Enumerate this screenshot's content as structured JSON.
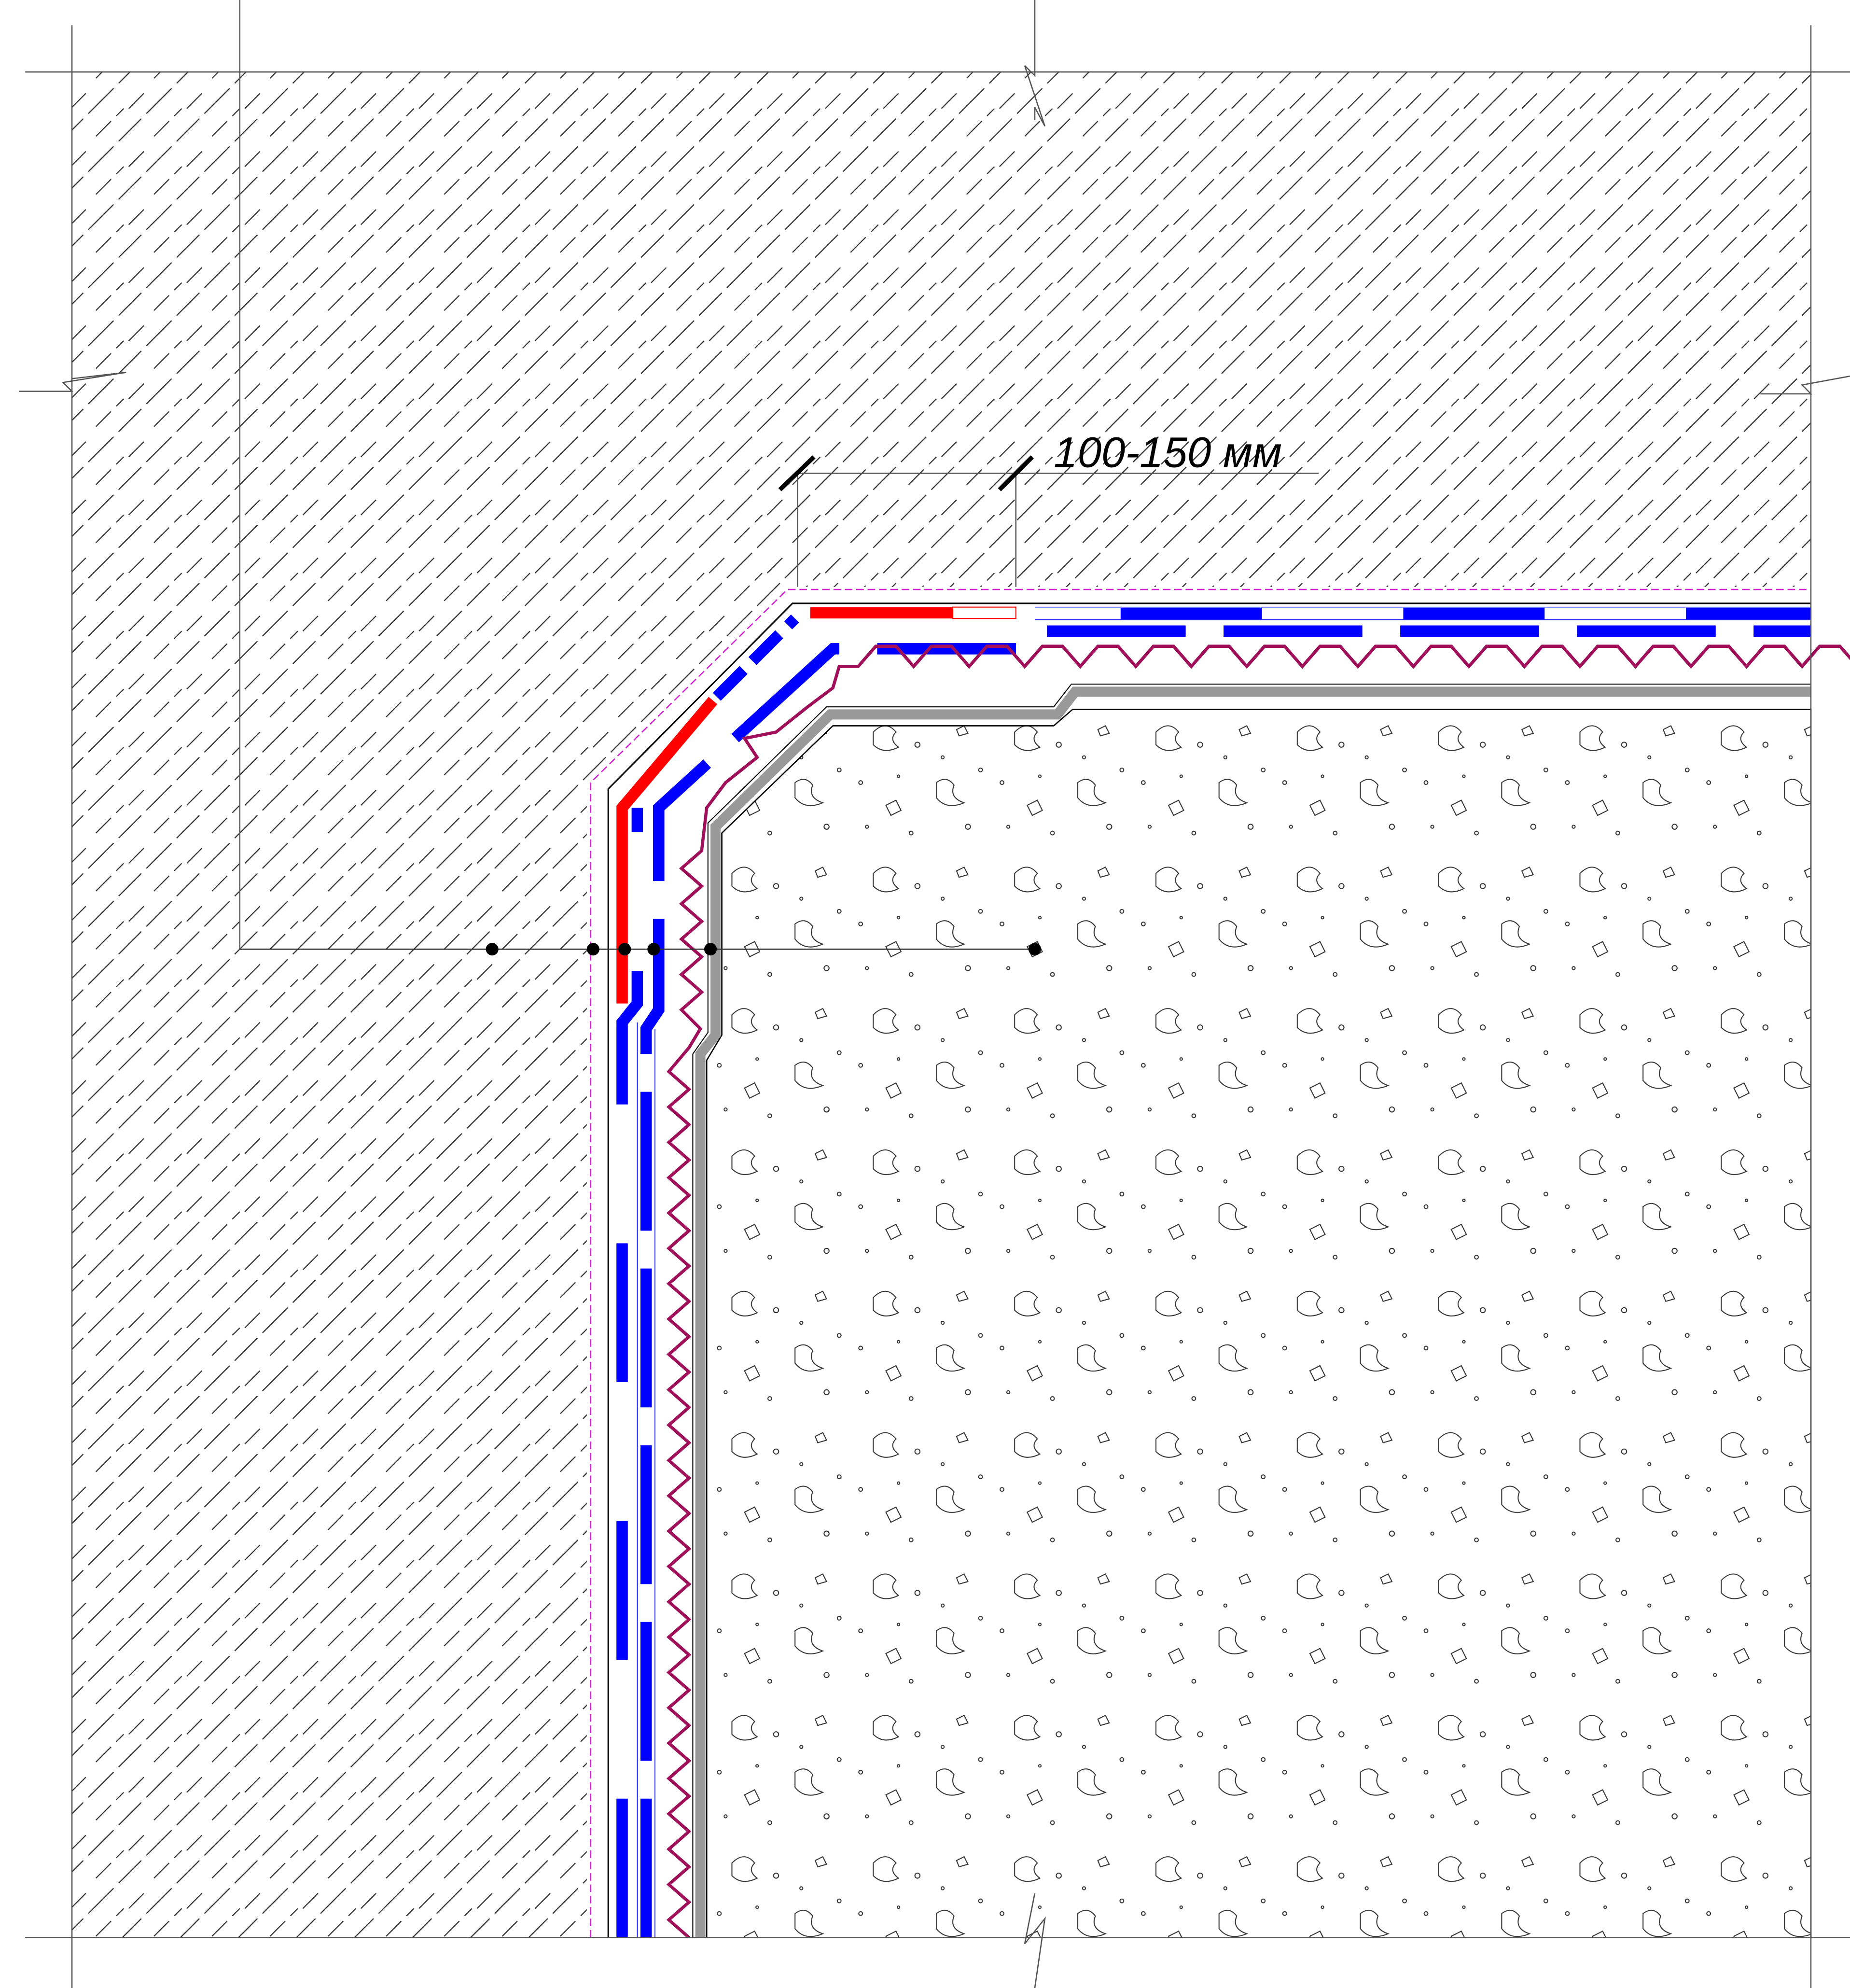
{
  "dimension": {
    "label": "100-150 мм"
  }
}
